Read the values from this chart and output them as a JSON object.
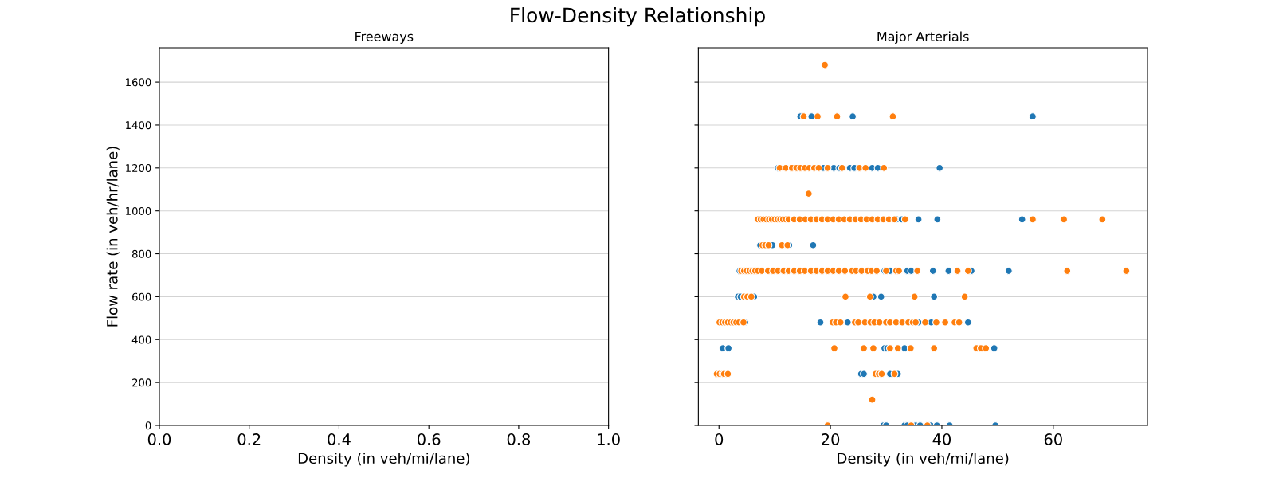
{
  "chart_data": [
    {
      "type": "scatter",
      "title": "Flow-Density Relationship",
      "subtitle": "Freeways",
      "xlabel": "Density (in veh/mi/lane)",
      "ylabel": "Flow rate (in veh/hr/lane)",
      "xlim": [
        0,
        1
      ],
      "xticks": [
        {
          "value": 0,
          "label": "0.0"
        },
        {
          "value": 0.2,
          "label": "0.2"
        },
        {
          "value": 0.4,
          "label": "0.4"
        },
        {
          "value": 0.6,
          "label": "0.6"
        },
        {
          "value": 0.8,
          "label": "0.8"
        },
        {
          "value": 1,
          "label": "1.0"
        }
      ],
      "ylim": [
        0,
        1760
      ],
      "yticks": [
        0,
        200,
        400,
        600,
        800,
        1000,
        1200,
        1400,
        1600
      ],
      "grid": "y"
    },
    {
      "type": "scatter",
      "subtitle": "Major Arterials",
      "xlabel": "Density (in veh/mi/lane)",
      "xlim": [
        -3.7,
        76.9
      ],
      "xticks": [
        0,
        20,
        40,
        60
      ],
      "ylim": [
        0,
        1760
      ],
      "yticks": [
        0,
        200,
        400,
        600,
        800,
        1000,
        1200,
        1400,
        1600
      ],
      "tick_labels": "x",
      "grid": "y",
      "marker": "circle",
      "series": [
        {
          "color": "#1f77b4",
          "x": [
            14.6,
            16.6,
            24.0,
            56.3,
            10.6,
            18.7,
            20.6,
            21.6,
            23.5,
            24.3,
            27.5,
            28.5,
            39.6,
            31.9,
            32.8,
            35.8,
            39.2,
            54.4,
            7.4,
            9.6,
            12.6,
            16.9,
            3.7,
            29.7,
            30.7,
            33.8,
            34.5,
            38.4,
            41.2,
            45.3,
            52.0,
            3.4,
            3.9,
            6.3,
            27.7,
            29.1,
            38.6,
            4.7,
            18.2,
            23.1,
            35.8,
            38.1,
            44.7,
            0.7,
            1.7,
            29.7,
            30.2,
            33.3,
            49.4,
            25.5,
            26.0,
            30.7,
            32.1,
            29.5,
            30.0,
            33.3,
            33.8,
            35.3,
            36.1,
            38.0,
            39.1,
            41.4,
            49.6
          ],
          "values": [
            1440,
            1440,
            1440,
            1440,
            1200,
            1200,
            1200,
            1200,
            1200,
            1200,
            1200,
            1200,
            1200,
            960,
            960,
            960,
            960,
            960,
            840,
            840,
            840,
            840,
            720,
            720,
            720,
            720,
            720,
            720,
            720,
            720,
            720,
            600,
            600,
            600,
            600,
            600,
            600,
            480,
            480,
            480,
            480,
            480,
            480,
            360,
            360,
            360,
            360,
            360,
            360,
            240,
            240,
            240,
            240,
            0,
            0,
            0,
            0,
            0,
            0,
            0,
            0,
            0,
            0
          ]
        },
        {
          "color": "#ff7f0e",
          "x": [
            19.0,
            15.2,
            17.7,
            21.2,
            31.2,
            10.9,
            12.0,
            13.1,
            13.9,
            14.6,
            15.4,
            16.2,
            17.1,
            17.9,
            19.5,
            22.1,
            25.2,
            26.3,
            29.6,
            16.1,
            7.0,
            7.5,
            8.0,
            8.5,
            9.0,
            9.5,
            10.0,
            10.5,
            11.0,
            11.5,
            12.0,
            12.5,
            13.5,
            14.5,
            15.5,
            16.5,
            17.5,
            18.5,
            19.5,
            20.5,
            21.5,
            22.5,
            23.5,
            24.5,
            25.5,
            26.5,
            27.5,
            28.5,
            29.5,
            30.5,
            31.5,
            33.4,
            56.3,
            61.9,
            68.8,
            7.8,
            8.3,
            8.9,
            11.3,
            12.3,
            4.0,
            4.5,
            5.0,
            5.5,
            6.0,
            6.5,
            7.0,
            7.7,
            8.8,
            9.7,
            10.6,
            11.6,
            12.5,
            13.5,
            14.5,
            15.4,
            16.5,
            17.5,
            18.5,
            19.5,
            20.5,
            21.5,
            22.6,
            23.9,
            24.6,
            25.6,
            26.7,
            27.4,
            28.3,
            30.0,
            31.8,
            32.3,
            35.6,
            42.8,
            44.7,
            62.5,
            73.1,
            4.5,
            5.1,
            5.8,
            22.7,
            27.1,
            35.1,
            44.1,
            0.1,
            0.6,
            1.1,
            1.6,
            2.1,
            2.6,
            3.1,
            3.6,
            4.4,
            20.4,
            21.0,
            21.8,
            24.4,
            25.0,
            26.2,
            27.2,
            27.9,
            28.8,
            30.0,
            30.7,
            31.8,
            32.9,
            34.0,
            34.8,
            35.3,
            37.0,
            39.0,
            40.6,
            42.3,
            43.1,
            20.7,
            26.0,
            27.7,
            30.7,
            32.1,
            34.4,
            38.6,
            46.2,
            47.0,
            47.9,
            -0.4,
            0.1,
            0.6,
            0.9,
            1.6,
            28.1,
            28.7,
            29.2,
            31.5,
            27.5,
            19.5,
            34.5,
            37.4
          ],
          "values": [
            1680,
            1440,
            1440,
            1440,
            1440,
            1200,
            1200,
            1200,
            1200,
            1200,
            1200,
            1200,
            1200,
            1200,
            1200,
            1200,
            1200,
            1200,
            1200,
            1080,
            960,
            960,
            960,
            960,
            960,
            960,
            960,
            960,
            960,
            960,
            960,
            960,
            960,
            960,
            960,
            960,
            960,
            960,
            960,
            960,
            960,
            960,
            960,
            960,
            960,
            960,
            960,
            960,
            960,
            960,
            960,
            960,
            960,
            960,
            960,
            840,
            840,
            840,
            840,
            840,
            720,
            720,
            720,
            720,
            720,
            720,
            720,
            720,
            720,
            720,
            720,
            720,
            720,
            720,
            720,
            720,
            720,
            720,
            720,
            720,
            720,
            720,
            720,
            720,
            720,
            720,
            720,
            720,
            720,
            720,
            720,
            720,
            720,
            720,
            720,
            720,
            720,
            600,
            600,
            600,
            600,
            600,
            600,
            600,
            480,
            480,
            480,
            480,
            480,
            480,
            480,
            480,
            480,
            480,
            480,
            480,
            480,
            480,
            480,
            480,
            480,
            480,
            480,
            480,
            480,
            480,
            480,
            480,
            480,
            480,
            480,
            480,
            480,
            480,
            360,
            360,
            360,
            360,
            360,
            360,
            360,
            360,
            360,
            360,
            240,
            240,
            240,
            240,
            240,
            240,
            240,
            240,
            240,
            120,
            0,
            0,
            0
          ]
        }
      ]
    }
  ]
}
